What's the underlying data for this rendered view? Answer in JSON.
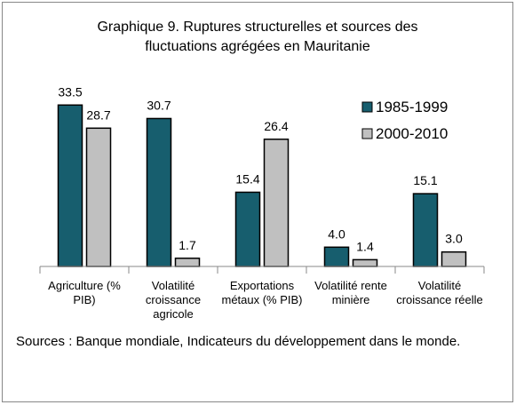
{
  "chart_data": {
    "type": "bar",
    "title": "Graphique 9. Ruptures structurelles et sources des fluctuations agrégées en Mauritanie",
    "categories": [
      "Agriculture (% PIB)",
      "Volatilité croissance agricole",
      "Exportations métaux (% PIB)",
      "Volatilité rente minière",
      "Volatilité croissance réelle"
    ],
    "series": [
      {
        "name": "1985-1999",
        "color": "#175e6e",
        "values": [
          33.5,
          30.7,
          15.4,
          4.0,
          15.1
        ],
        "value_labels": [
          "33.5",
          "30.7",
          "15.4",
          "4.0",
          "15.1"
        ]
      },
      {
        "name": "2000-2010",
        "color": "#c0c0c0",
        "values": [
          28.7,
          1.7,
          26.4,
          1.4,
          3.0
        ],
        "value_labels": [
          "28.7",
          "1.7",
          "26.4",
          "1.4",
          "3.0"
        ]
      }
    ],
    "ylim": [
      0,
      40
    ],
    "legend": "upper right",
    "note": "Sources : Banque mondiale, Indicateurs du développement dans le monde."
  }
}
